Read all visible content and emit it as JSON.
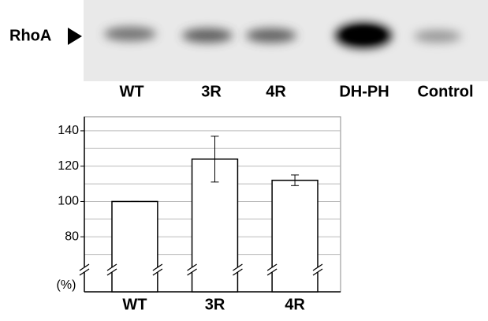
{
  "blot": {
    "marker": "RhoA",
    "lanes": [
      "WT",
      "3R",
      "4R",
      "DH-PH",
      "Control"
    ]
  },
  "chart_data": {
    "type": "bar",
    "ylabel": "(%)",
    "categories": [
      "WT",
      "3R",
      "4R"
    ],
    "values": [
      100,
      124,
      112
    ],
    "errors": [
      0,
      13,
      3
    ],
    "color": "#ffffff",
    "ylim": [
      60,
      148
    ],
    "yticks": [
      80,
      100,
      120,
      140
    ],
    "minor_yticks": [
      70,
      90,
      110,
      130
    ],
    "grid": true,
    "axis_break": true
  }
}
